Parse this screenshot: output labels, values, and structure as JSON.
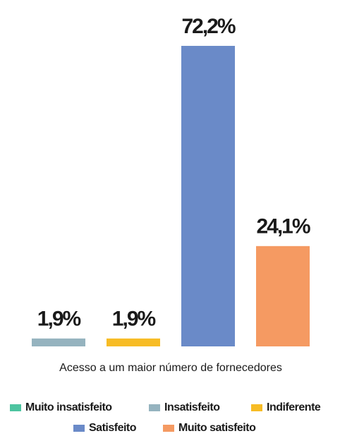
{
  "chart_data": {
    "type": "bar",
    "categories": [
      "Acesso a um maior número de fornecedores"
    ],
    "series": [
      {
        "name": "Muito insatisfeito",
        "color": "#4dc4a0",
        "values": [
          null
        ]
      },
      {
        "name": "Insatisfeito",
        "color": "#95b3bf",
        "values": [
          1.9
        ],
        "value_labels": [
          "1,9%"
        ]
      },
      {
        "name": "Indiferente",
        "color": "#f7bc25",
        "values": [
          1.9
        ],
        "value_labels": [
          "1,9%"
        ]
      },
      {
        "name": "Satisfeito",
        "color": "#6a8ac8",
        "values": [
          72.2
        ],
        "value_labels": [
          "72,2%"
        ]
      },
      {
        "name": "Muito satisfeito",
        "color": "#f59a62",
        "values": [
          24.1
        ],
        "value_labels": [
          "24,1%"
        ]
      }
    ],
    "ylim": [
      0,
      80
    ]
  }
}
